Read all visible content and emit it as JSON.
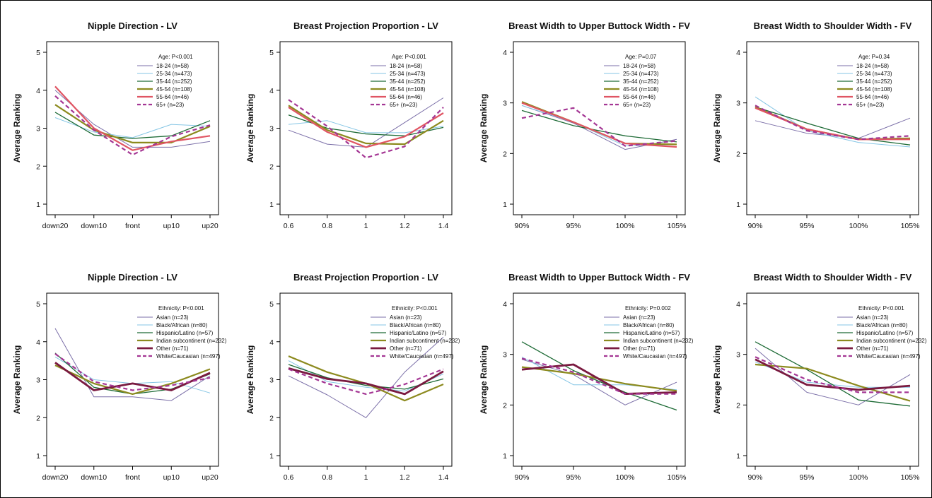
{
  "figure": {
    "ylabel": "Average Ranking"
  },
  "chart_data": [
    {
      "type": "line",
      "title": "Nipple Direction - LV",
      "ylabel": "Average Ranking",
      "x": [
        "down20",
        "down10",
        "front",
        "up10",
        "up20"
      ],
      "ylim": [
        1,
        5
      ],
      "yticks": [
        1,
        2,
        3,
        4,
        5
      ],
      "legend_title": "Age: P<0.001",
      "legend_placement": "top-right",
      "series": [
        {
          "name": "18-24 (n=58)",
          "color": "#7b6fa8",
          "width": 1,
          "dash": "",
          "values": [
            4.0,
            3.1,
            2.5,
            2.5,
            2.65
          ]
        },
        {
          "name": "25-34 (n=473)",
          "color": "#86c6e5",
          "width": 1,
          "dash": "",
          "values": [
            3.28,
            2.9,
            2.75,
            3.1,
            3.05
          ]
        },
        {
          "name": "35-44 (n=252)",
          "color": "#1e6b36",
          "width": 1.3,
          "dash": "",
          "values": [
            3.42,
            2.82,
            2.73,
            2.8,
            3.2
          ]
        },
        {
          "name": "45-54 (n=108)",
          "color": "#8c8a1e",
          "width": 2.2,
          "dash": "",
          "values": [
            3.62,
            2.95,
            2.62,
            2.62,
            3.05
          ]
        },
        {
          "name": "55-64 (n=46)",
          "color": "#e05563",
          "width": 2.2,
          "dash": "",
          "values": [
            4.1,
            3.0,
            2.42,
            2.65,
            2.8
          ]
        },
        {
          "name": "65+ (n=23)",
          "color": "#a43694",
          "width": 2.2,
          "dash": "6,4",
          "values": [
            3.85,
            2.95,
            2.3,
            2.78,
            3.08
          ]
        }
      ]
    },
    {
      "type": "line",
      "title": "Breast Projection Proportion - LV",
      "ylabel": "Average Ranking",
      "x": [
        "0.6",
        "0.8",
        "1",
        "1.2",
        "1.4"
      ],
      "ylim": [
        1,
        5
      ],
      "yticks": [
        1,
        2,
        3,
        4,
        5
      ],
      "legend_title": "Age: P<0.001",
      "legend_placement": "top-right",
      "series": [
        {
          "name": "18-24 (n=58)",
          "color": "#7b6fa8",
          "width": 1,
          "dash": "",
          "values": [
            2.95,
            2.58,
            2.5,
            3.15,
            3.8
          ]
        },
        {
          "name": "25-34 (n=473)",
          "color": "#86c6e5",
          "width": 1,
          "dash": "",
          "values": [
            3.1,
            3.2,
            2.88,
            2.88,
            3.05
          ]
        },
        {
          "name": "35-44 (n=252)",
          "color": "#1e6b36",
          "width": 1.3,
          "dash": "",
          "values": [
            3.35,
            3.0,
            2.85,
            2.8,
            3.02
          ]
        },
        {
          "name": "45-54 (n=108)",
          "color": "#8c8a1e",
          "width": 2.2,
          "dash": "",
          "values": [
            3.6,
            2.95,
            2.6,
            2.58,
            3.2
          ]
        },
        {
          "name": "55-64 (n=46)",
          "color": "#e05563",
          "width": 2.2,
          "dash": "",
          "values": [
            3.55,
            2.9,
            2.5,
            2.78,
            3.4
          ]
        },
        {
          "name": "65+ (n=23)",
          "color": "#a43694",
          "width": 2.2,
          "dash": "6,4",
          "values": [
            3.75,
            3.05,
            2.22,
            2.52,
            3.55
          ]
        }
      ]
    },
    {
      "type": "line",
      "title": "Breast Width to Upper Buttock Width - FV",
      "ylabel": "Average Ranking",
      "x": [
        "90%",
        "95%",
        "100%",
        "105%"
      ],
      "ylim": [
        1,
        4
      ],
      "yticks": [
        1,
        2,
        3,
        4
      ],
      "legend_title": "Age: P=0.07",
      "legend_placement": "top-right",
      "series": [
        {
          "name": "18-24 (n=58)",
          "color": "#7b6fa8",
          "width": 1,
          "dash": "",
          "values": [
            2.95,
            2.6,
            2.08,
            2.28
          ]
        },
        {
          "name": "25-34 (n=473)",
          "color": "#86c6e5",
          "width": 1,
          "dash": "",
          "values": [
            2.95,
            2.62,
            2.15,
            2.18
          ]
        },
        {
          "name": "35-44 (n=252)",
          "color": "#1e6b36",
          "width": 1.3,
          "dash": "",
          "values": [
            2.85,
            2.55,
            2.35,
            2.23
          ]
        },
        {
          "name": "45-54 (n=108)",
          "color": "#8c8a1e",
          "width": 2.2,
          "dash": "",
          "values": [
            3.02,
            2.62,
            2.2,
            2.18
          ]
        },
        {
          "name": "55-64 (n=46)",
          "color": "#e05563",
          "width": 2.2,
          "dash": "",
          "values": [
            3.0,
            2.62,
            2.2,
            2.13
          ]
        },
        {
          "name": "65+ (n=23)",
          "color": "#a43694",
          "width": 2.2,
          "dash": "6,4",
          "values": [
            2.7,
            2.9,
            2.15,
            2.25
          ]
        }
      ]
    },
    {
      "type": "line",
      "title": "Breast Width to Shoulder Width - FV",
      "ylabel": "Average Ranking",
      "x": [
        "90%",
        "95%",
        "100%",
        "105%"
      ],
      "ylim": [
        1,
        4
      ],
      "yticks": [
        1,
        2,
        3,
        4
      ],
      "legend_title": "Age: P=0.34",
      "legend_placement": "top-right",
      "series": [
        {
          "name": "18-24 (n=58)",
          "color": "#7b6fa8",
          "width": 1,
          "dash": "",
          "values": [
            2.65,
            2.4,
            2.3,
            2.7
          ]
        },
        {
          "name": "25-34 (n=473)",
          "color": "#86c6e5",
          "width": 1,
          "dash": "",
          "values": [
            3.12,
            2.45,
            2.22,
            2.13
          ]
        },
        {
          "name": "35-44 (n=252)",
          "color": "#1e6b36",
          "width": 1.3,
          "dash": "",
          "values": [
            2.92,
            2.6,
            2.3,
            2.17
          ]
        },
        {
          "name": "45-54 (n=108)",
          "color": "#8c8a1e",
          "width": 2.2,
          "dash": "",
          "values": [
            2.92,
            2.48,
            2.28,
            2.3
          ]
        },
        {
          "name": "55-64 (n=46)",
          "color": "#e05563",
          "width": 2.2,
          "dash": "",
          "values": [
            2.9,
            2.48,
            2.28,
            2.28
          ]
        },
        {
          "name": "65+ (n=23)",
          "color": "#a43694",
          "width": 2.2,
          "dash": "6,4",
          "values": [
            2.95,
            2.45,
            2.28,
            2.35
          ]
        }
      ]
    },
    {
      "type": "line",
      "title": "Nipple Direction - LV",
      "ylabel": "Average Ranking",
      "x": [
        "down20",
        "down10",
        "front",
        "up10",
        "up20"
      ],
      "ylim": [
        1,
        5
      ],
      "yticks": [
        1,
        2,
        3,
        4,
        5
      ],
      "legend_title": "Ethnicity: P<0.001",
      "legend_placement": "top-right",
      "series": [
        {
          "name": "Asian (n=23)",
          "color": "#7b6fa8",
          "width": 1,
          "dash": "",
          "values": [
            4.35,
            2.55,
            2.55,
            2.45,
            3.1
          ]
        },
        {
          "name": "Black/African (n=80)",
          "color": "#86c6e5",
          "width": 1,
          "dash": "",
          "values": [
            3.6,
            3.0,
            2.9,
            2.95,
            2.65
          ]
        },
        {
          "name": "Hispanic/Latino (n=57)",
          "color": "#1e6b36",
          "width": 1.3,
          "dash": "",
          "values": [
            3.7,
            2.8,
            2.62,
            2.75,
            3.15
          ]
        },
        {
          "name": "Indian subcontinent (n=232)",
          "color": "#8c8a1e",
          "width": 2.2,
          "dash": "",
          "values": [
            3.38,
            2.9,
            2.62,
            2.9,
            3.28
          ]
        },
        {
          "name": "Other (n=71)",
          "color": "#7a1a40",
          "width": 2.8,
          "dash": "",
          "values": [
            3.45,
            2.72,
            2.9,
            2.72,
            3.18
          ]
        },
        {
          "name": "White/Caucasian (n=497)",
          "color": "#a43694",
          "width": 2.2,
          "dash": "6,4",
          "values": [
            3.68,
            2.95,
            2.72,
            2.85,
            3.05
          ]
        }
      ]
    },
    {
      "type": "line",
      "title": "Breast Projection Proportion - LV",
      "ylabel": "Average Ranking",
      "x": [
        "0.6",
        "0.8",
        "1",
        "1.2",
        "1.4"
      ],
      "ylim": [
        1,
        5
      ],
      "yticks": [
        1,
        2,
        3,
        4,
        5
      ],
      "legend_title": "Ethnicity: P<0.001",
      "legend_placement": "top-right",
      "series": [
        {
          "name": "Asian (n=23)",
          "color": "#7b6fa8",
          "width": 1,
          "dash": "",
          "values": [
            3.1,
            2.6,
            2.0,
            3.2,
            4.12
          ]
        },
        {
          "name": "Black/African (n=80)",
          "color": "#86c6e5",
          "width": 1,
          "dash": "",
          "values": [
            3.5,
            2.95,
            2.8,
            2.7,
            3.15
          ]
        },
        {
          "name": "Hispanic/Latino (n=57)",
          "color": "#1e6b36",
          "width": 1.3,
          "dash": "",
          "values": [
            3.4,
            3.05,
            2.85,
            2.75,
            3.02
          ]
        },
        {
          "name": "Indian subcontinent (n=232)",
          "color": "#8c8a1e",
          "width": 2.2,
          "dash": "",
          "values": [
            3.62,
            3.2,
            2.9,
            2.45,
            2.88
          ]
        },
        {
          "name": "Other (n=71)",
          "color": "#7a1a40",
          "width": 2.8,
          "dash": "",
          "values": [
            3.3,
            3.02,
            2.9,
            2.62,
            3.22
          ]
        },
        {
          "name": "White/Caucasian (n=497)",
          "color": "#a43694",
          "width": 2.2,
          "dash": "6,4",
          "values": [
            3.28,
            2.9,
            2.62,
            2.88,
            3.28
          ]
        }
      ]
    },
    {
      "type": "line",
      "title": "Breast Width to Upper Buttock Width - FV",
      "ylabel": "Average Ranking",
      "x": [
        "90%",
        "95%",
        "100%",
        "105%"
      ],
      "ylim": [
        1,
        4
      ],
      "yticks": [
        1,
        2,
        3,
        4
      ],
      "legend_title": "Ethnicity: P=0.002",
      "legend_placement": "top-right",
      "series": [
        {
          "name": "Asian (n=23)",
          "color": "#7b6fa8",
          "width": 1,
          "dash": "",
          "values": [
            2.9,
            2.6,
            2.0,
            2.45
          ]
        },
        {
          "name": "Black/African (n=80)",
          "color": "#86c6e5",
          "width": 1,
          "dash": "",
          "values": [
            2.95,
            2.4,
            2.4,
            2.3
          ]
        },
        {
          "name": "Hispanic/Latino (n=57)",
          "color": "#1e6b36",
          "width": 1.3,
          "dash": "",
          "values": [
            3.25,
            2.68,
            2.25,
            1.9
          ]
        },
        {
          "name": "Indian subcontinent (n=232)",
          "color": "#8c8a1e",
          "width": 2.2,
          "dash": "",
          "values": [
            2.75,
            2.62,
            2.42,
            2.28
          ]
        },
        {
          "name": "Other (n=71)",
          "color": "#7a1a40",
          "width": 2.8,
          "dash": "",
          "values": [
            2.7,
            2.8,
            2.22,
            2.25
          ]
        },
        {
          "name": "White/Caucasian (n=497)",
          "color": "#a43694",
          "width": 2.2,
          "dash": "6,4",
          "values": [
            2.92,
            2.65,
            2.22,
            2.22
          ]
        }
      ]
    },
    {
      "type": "line",
      "title": "Breast Width to Shoulder Width - FV",
      "ylabel": "Average Ranking",
      "x": [
        "90%",
        "95%",
        "100%",
        "105%"
      ],
      "ylim": [
        1,
        4
      ],
      "yticks": [
        1,
        2,
        3,
        4
      ],
      "legend_title": "Ethnicity: P<0.001",
      "legend_placement": "top-right",
      "series": [
        {
          "name": "Asian (n=23)",
          "color": "#7b6fa8",
          "width": 1,
          "dash": "",
          "values": [
            3.12,
            2.25,
            2.0,
            2.6
          ]
        },
        {
          "name": "Black/African (n=80)",
          "color": "#86c6e5",
          "width": 1,
          "dash": "",
          "values": [
            2.85,
            2.45,
            2.35,
            2.35
          ]
        },
        {
          "name": "Hispanic/Latino (n=57)",
          "color": "#1e6b36",
          "width": 1.3,
          "dash": "",
          "values": [
            3.25,
            2.7,
            2.1,
            1.98
          ]
        },
        {
          "name": "Indian subcontinent (n=232)",
          "color": "#8c8a1e",
          "width": 2.2,
          "dash": "",
          "values": [
            2.8,
            2.72,
            2.38,
            2.08
          ]
        },
        {
          "name": "Other (n=71)",
          "color": "#7a1a40",
          "width": 2.8,
          "dash": "",
          "values": [
            2.9,
            2.4,
            2.3,
            2.38
          ]
        },
        {
          "name": "White/Caucasian (n=497)",
          "color": "#a43694",
          "width": 2.2,
          "dash": "6,4",
          "values": [
            2.95,
            2.5,
            2.25,
            2.25
          ]
        }
      ]
    }
  ]
}
